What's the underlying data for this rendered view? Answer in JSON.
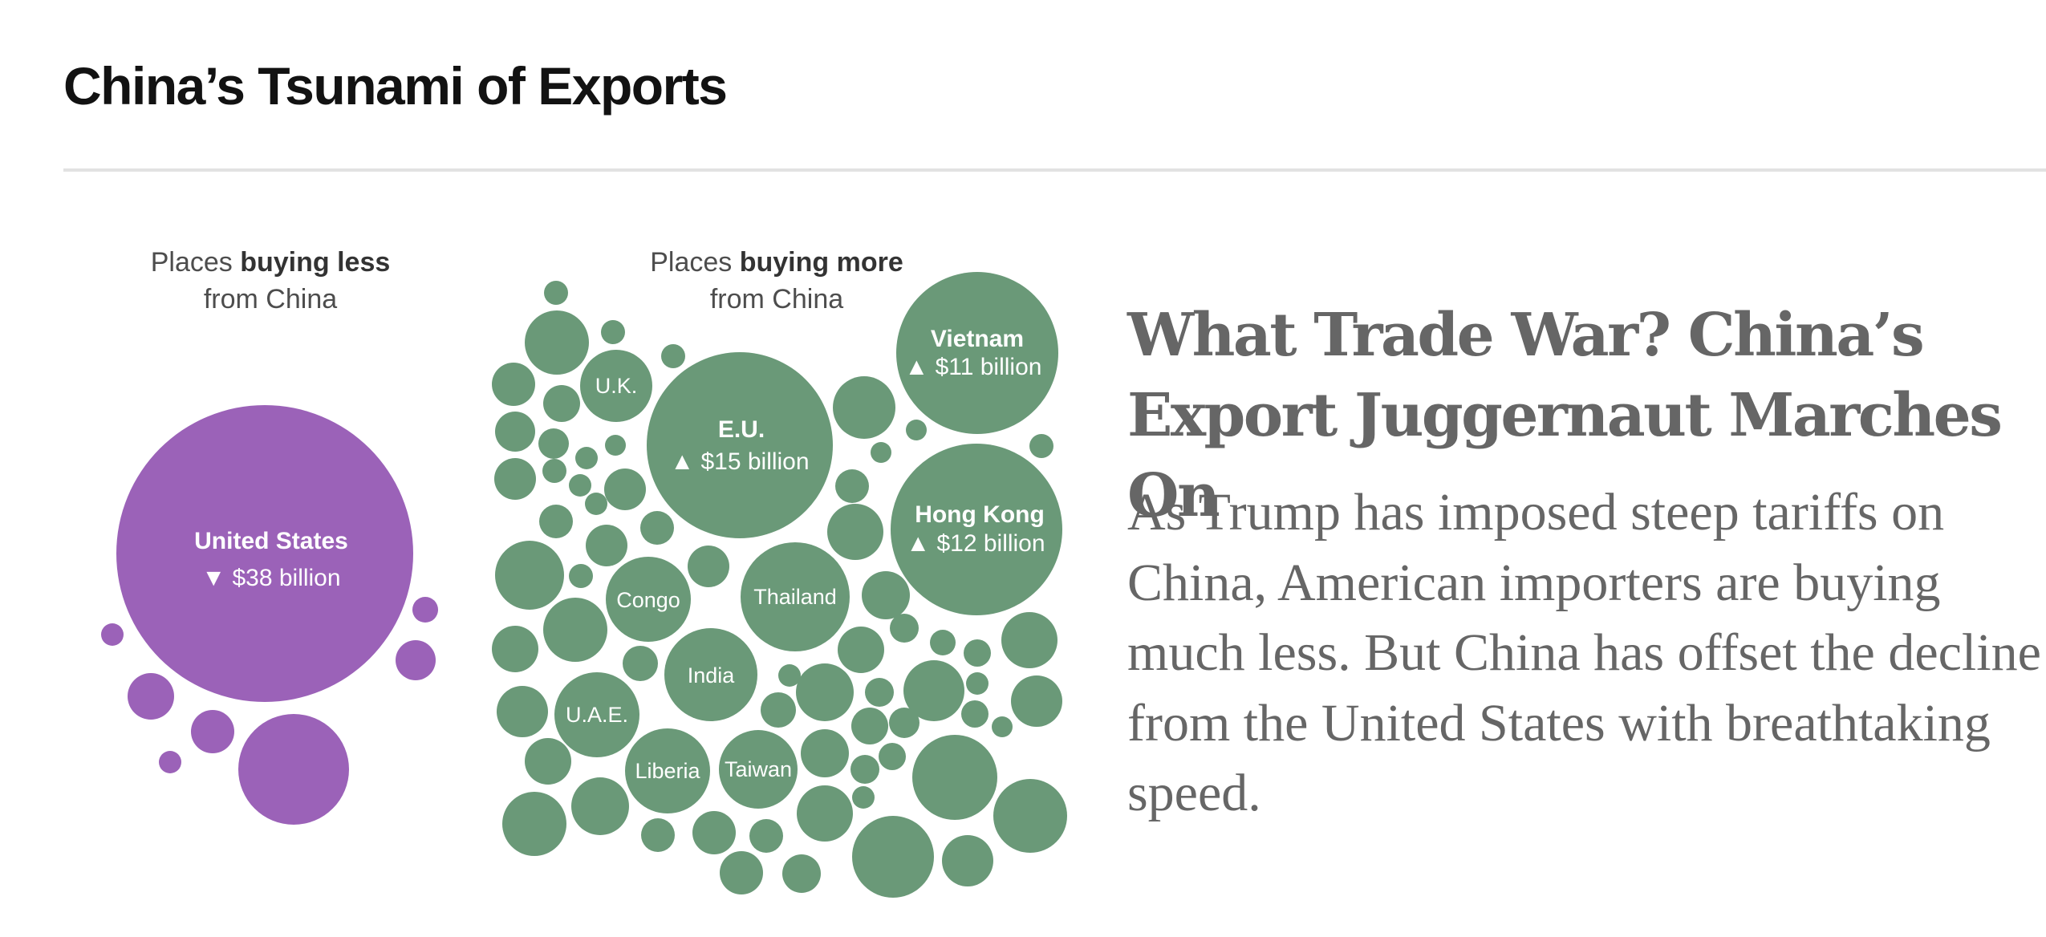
{
  "section": {
    "title": "China’s Tsunami of Exports"
  },
  "graphic": {
    "less_panel": {
      "label_prefix": "Places ",
      "label_bold": "buying less",
      "label_line2": "from China",
      "color": "#9b62b8"
    },
    "more_panel": {
      "label_prefix": "Places ",
      "label_bold": "buying more",
      "label_line2": "from China",
      "color": "#6a9978"
    },
    "down_arrow": "▼",
    "up_arrow": "▲",
    "labeled": {
      "us": {
        "name": "United States",
        "value": "$38 billion",
        "direction": "down"
      },
      "eu": {
        "name": "E.U.",
        "value": "$15 billion",
        "direction": "up"
      },
      "vietnam": {
        "name": "Vietnam",
        "value": "$11 billion",
        "direction": "up"
      },
      "hongkong": {
        "name": "Hong Kong",
        "value": "$12 billion",
        "direction": "up"
      },
      "uk": {
        "name": "U.K."
      },
      "congo": {
        "name": "Congo"
      },
      "thailand": {
        "name": "Thailand"
      },
      "india": {
        "name": "India"
      },
      "uae": {
        "name": "U.A.E."
      },
      "liberia": {
        "name": "Liberia"
      },
      "taiwan": {
        "name": "Taiwan"
      }
    }
  },
  "story": {
    "headline": "What Trade War? China’s Export Juggernaut Marches On",
    "summary": "As Trump has imposed steep tariffs on China, American importers are buying much less. But China has offset the decline from the United States with breathtaking speed."
  }
}
